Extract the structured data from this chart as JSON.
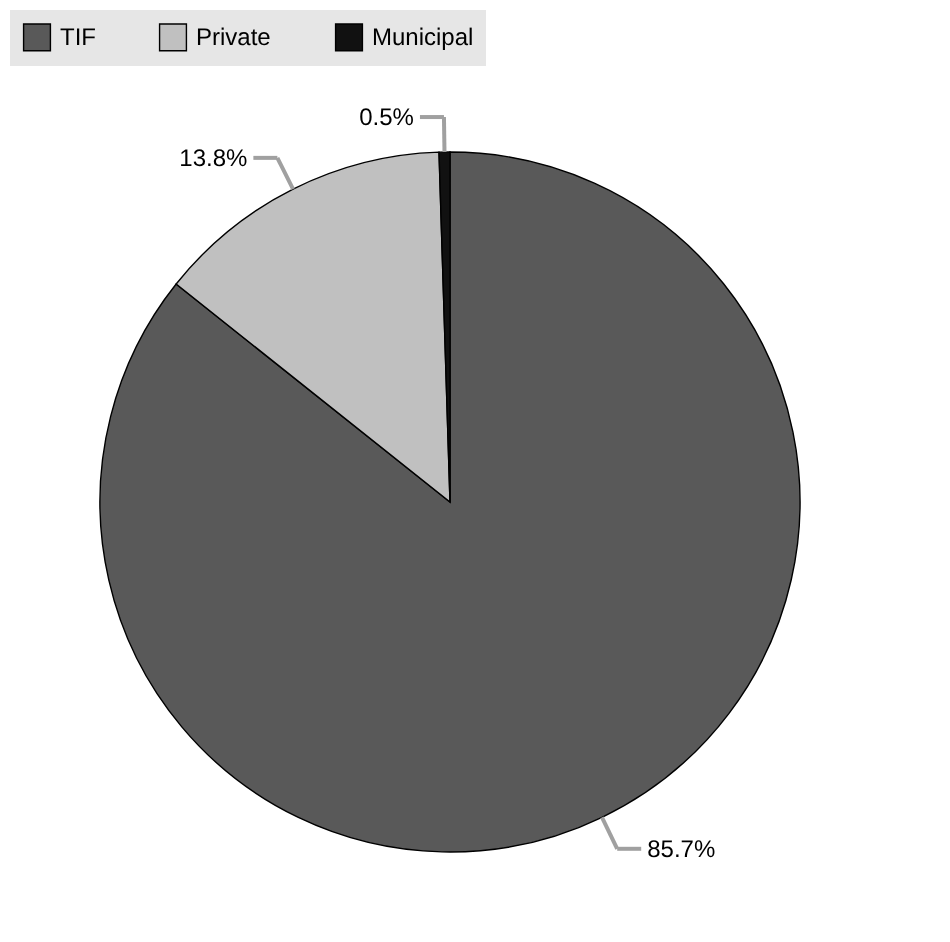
{
  "chart_data": {
    "type": "pie",
    "categories": [
      "TIF",
      "Private",
      "Municipal"
    ],
    "values": [
      85.7,
      13.8,
      0.5
    ],
    "colors": [
      "#595959",
      "#c0c0c0",
      "#111111"
    ],
    "value_labels": [
      "85.7%",
      "13.8%",
      "0.5%"
    ],
    "legend": "top"
  }
}
